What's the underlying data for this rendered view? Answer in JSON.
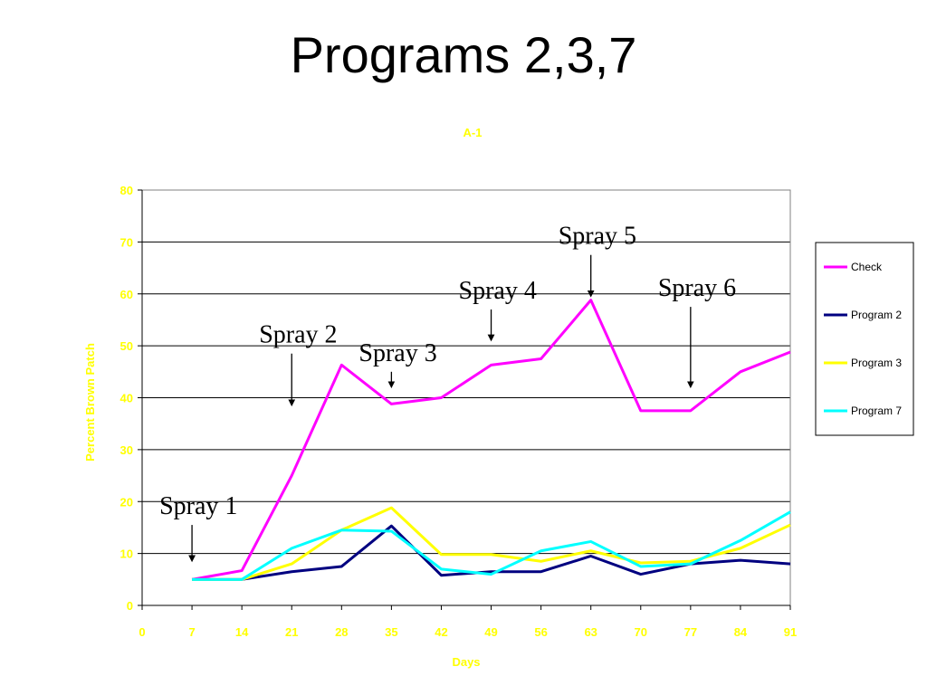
{
  "slide_title": "Programs 2,3,7",
  "colors": {
    "label": "#ffff00",
    "check": "#ff00ff",
    "program2": "#000080",
    "program3": "#ffff00",
    "program7": "#00ffff"
  },
  "chart_data": {
    "type": "line",
    "title": "A-1",
    "xlabel": "Days",
    "ylabel": "Percent Brown Patch",
    "xlim": [
      0,
      91
    ],
    "ylim": [
      0,
      80
    ],
    "x_ticks": [
      0,
      7,
      14,
      21,
      28,
      35,
      42,
      49,
      56,
      63,
      70,
      77,
      84,
      91
    ],
    "y_ticks": [
      0,
      10,
      20,
      30,
      40,
      50,
      60,
      70,
      80
    ],
    "grid": "horizontal",
    "legend_position": "right",
    "x": [
      7,
      14,
      21,
      28,
      35,
      42,
      49,
      56,
      63,
      70,
      77,
      84,
      91
    ],
    "series": [
      {
        "name": "Check",
        "color": "#ff00ff",
        "values": [
          5,
          6.7,
          25,
          46.3,
          38.8,
          40,
          46.3,
          47.5,
          58.8,
          37.5,
          37.5,
          45,
          48.8
        ]
      },
      {
        "name": "Program 2",
        "color": "#000080",
        "values": [
          5,
          5,
          6.5,
          7.5,
          15.3,
          5.8,
          6.5,
          6.5,
          9.5,
          6,
          8,
          8.7,
          8
        ]
      },
      {
        "name": "Program 3",
        "color": "#ffff00",
        "values": [
          5,
          5,
          8,
          14.5,
          18.8,
          9.8,
          9.8,
          8.5,
          10.5,
          8.2,
          8.5,
          11,
          15.5
        ]
      },
      {
        "name": "Program 7",
        "color": "#00ffff",
        "values": [
          5,
          5,
          11,
          14.5,
          14.3,
          7,
          6,
          10.5,
          12.3,
          7.5,
          8,
          12.5,
          18
        ]
      }
    ],
    "annotations": [
      {
        "text": "Spray 1",
        "x": 7,
        "y_from": 15.5,
        "y_to": 9
      },
      {
        "text": "Spray 2",
        "x": 21,
        "y_from": 48.5,
        "y_to": 39
      },
      {
        "text": "Spray 3",
        "x": 35,
        "y_from": 45,
        "y_to": 42.5
      },
      {
        "text": "Spray 4",
        "x": 49,
        "y_from": 57,
        "y_to": 51.5
      },
      {
        "text": "Spray 5",
        "x": 63,
        "y_from": 67.5,
        "y_to": 60
      },
      {
        "text": "Spray 6",
        "x": 77,
        "y_from": 57.5,
        "y_to": 42.5
      }
    ]
  }
}
